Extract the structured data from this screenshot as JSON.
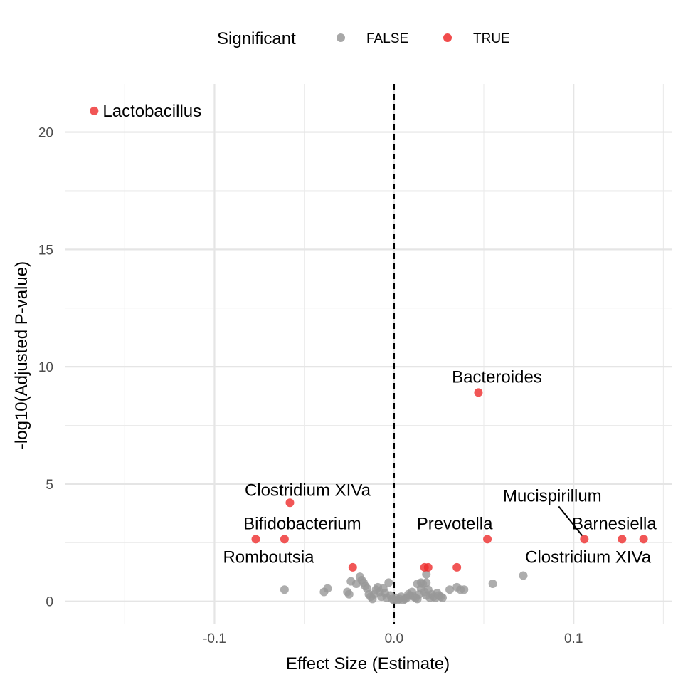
{
  "chart_data": {
    "type": "scatter",
    "title": "",
    "xlabel": "Effect Size (Estimate)",
    "ylabel": "-log10(Adjusted P-value)",
    "xlim": [
      -0.183,
      0.155
    ],
    "ylim": [
      -0.95,
      22.05
    ],
    "x_ticks": [
      -0.1,
      0.0,
      0.1
    ],
    "x_tick_labels": [
      "-0.1",
      "0.0",
      "0.1"
    ],
    "y_ticks": [
      0,
      5,
      10,
      15,
      20
    ],
    "y_tick_labels": [
      "0",
      "5",
      "10",
      "15",
      "20"
    ],
    "grid": true,
    "reference_line": {
      "x": 0,
      "style": "dashed"
    },
    "legend": {
      "title": "Significant",
      "position": "top",
      "entries": [
        {
          "label": "FALSE",
          "color": "#999999"
        },
        {
          "label": "TRUE",
          "color": "#EE2C2C"
        }
      ]
    },
    "series": [
      {
        "name": "FALSE",
        "color": "#999999",
        "points": [
          [
            -0.061,
            0.5
          ],
          [
            -0.039,
            0.4
          ],
          [
            -0.037,
            0.55
          ],
          [
            -0.025,
            0.3
          ],
          [
            -0.026,
            0.4
          ],
          [
            -0.024,
            0.85
          ],
          [
            -0.021,
            0.75
          ],
          [
            -0.019,
            1.05
          ],
          [
            -0.018,
            0.9
          ],
          [
            -0.017,
            0.8
          ],
          [
            -0.016,
            0.65
          ],
          [
            -0.015,
            0.55
          ],
          [
            -0.014,
            0.3
          ],
          [
            -0.013,
            0.2
          ],
          [
            -0.012,
            0.1
          ],
          [
            -0.011,
            0.3
          ],
          [
            -0.01,
            0.5
          ],
          [
            -0.009,
            0.6
          ],
          [
            -0.008,
            0.4
          ],
          [
            -0.007,
            0.2
          ],
          [
            -0.006,
            0.55
          ],
          [
            -0.005,
            0.35
          ],
          [
            -0.004,
            0.15
          ],
          [
            -0.003,
            0.8
          ],
          [
            -0.002,
            0.25
          ],
          [
            -0.001,
            0.1
          ],
          [
            0.0,
            0.05
          ],
          [
            0.001,
            0.15
          ],
          [
            0.002,
            0.05
          ],
          [
            0.003,
            0.1
          ],
          [
            0.004,
            0.2
          ],
          [
            0.005,
            0.05
          ],
          [
            0.006,
            0.1
          ],
          [
            0.007,
            0.15
          ],
          [
            0.008,
            0.3
          ],
          [
            0.009,
            0.25
          ],
          [
            0.01,
            0.4
          ],
          [
            0.011,
            0.2
          ],
          [
            0.012,
            0.15
          ],
          [
            0.013,
            0.1
          ],
          [
            0.014,
            0.3
          ],
          [
            0.015,
            0.55
          ],
          [
            0.016,
            0.75
          ],
          [
            0.017,
            0.4
          ],
          [
            0.018,
            0.25
          ],
          [
            0.019,
            0.5
          ],
          [
            0.02,
            0.15
          ],
          [
            0.021,
            0.3
          ],
          [
            0.022,
            0.2
          ],
          [
            0.023,
            0.15
          ],
          [
            0.024,
            0.35
          ],
          [
            0.025,
            0.25
          ],
          [
            0.026,
            0.2
          ],
          [
            0.027,
            0.15
          ],
          [
            0.015,
            0.8
          ],
          [
            0.013,
            0.75
          ],
          [
            0.018,
            1.15
          ],
          [
            0.018,
            0.8
          ],
          [
            0.031,
            0.5
          ],
          [
            0.035,
            0.6
          ],
          [
            0.037,
            0.5
          ],
          [
            0.039,
            0.5
          ],
          [
            0.055,
            0.75
          ],
          [
            0.072,
            1.1
          ]
        ]
      },
      {
        "name": "TRUE",
        "color": "#EE2C2C",
        "points": [
          [
            -0.167,
            20.9
          ],
          [
            0.047,
            8.9
          ],
          [
            -0.058,
            4.2
          ],
          [
            -0.077,
            2.65
          ],
          [
            -0.061,
            2.65
          ],
          [
            0.052,
            2.65
          ],
          [
            0.106,
            2.65
          ],
          [
            0.127,
            2.65
          ],
          [
            0.139,
            2.65
          ],
          [
            -0.023,
            1.45
          ],
          [
            0.017,
            1.45
          ],
          [
            0.019,
            1.45
          ],
          [
            0.035,
            1.45
          ]
        ]
      }
    ],
    "annotations": [
      {
        "text": "Lactobacillus",
        "x": -0.167,
        "y": 20.9
      },
      {
        "text": "Bacteroides",
        "x": 0.047,
        "y": 8.9
      },
      {
        "text": "Clostridium XIVa",
        "x": -0.058,
        "y": 4.2
      },
      {
        "text": "Bifidobacterium",
        "x": -0.061,
        "y": 2.65
      },
      {
        "text": "Romboutsia",
        "x": -0.077,
        "y": 2.65
      },
      {
        "text": "Prevotella",
        "x": 0.052,
        "y": 2.65
      },
      {
        "text": "Mucispirillum",
        "x": 0.106,
        "y": 2.65
      },
      {
        "text": "Barnesiella",
        "x": 0.127,
        "y": 2.65
      },
      {
        "text": "Clostridium XIVa",
        "x": 0.139,
        "y": 2.65
      }
    ]
  }
}
